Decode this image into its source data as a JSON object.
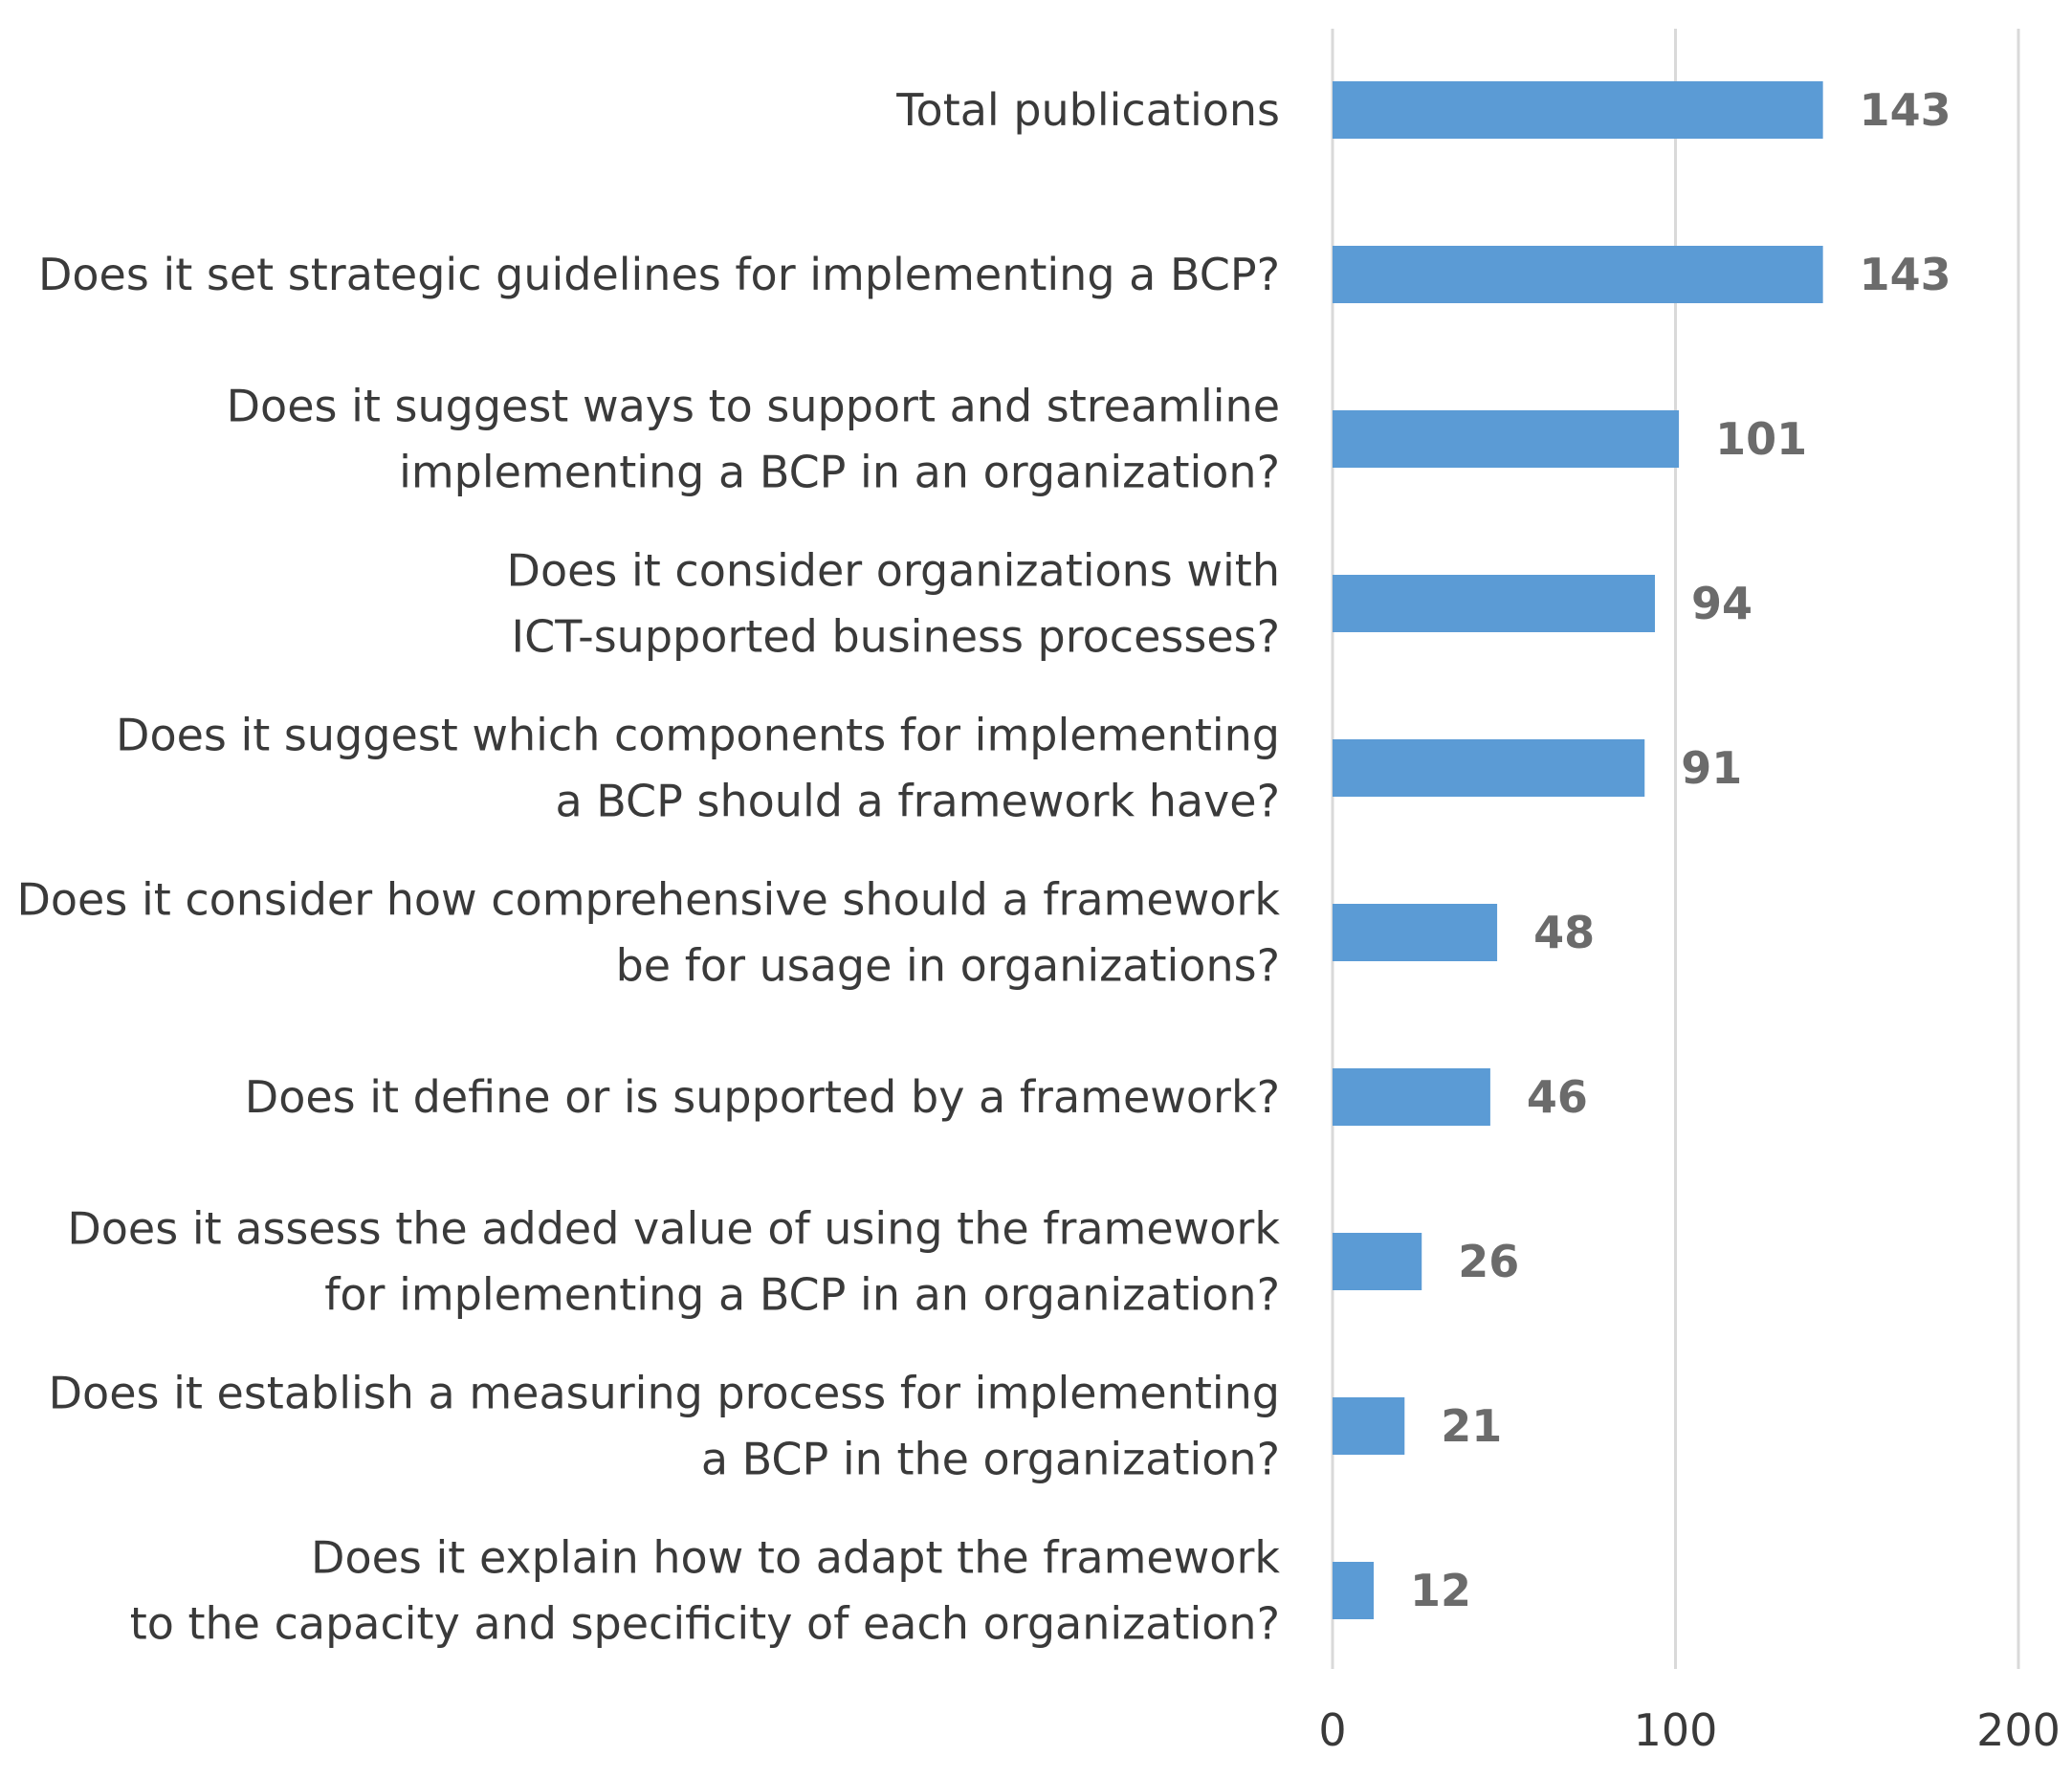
{
  "chart_data": {
    "type": "bar",
    "orientation": "horizontal",
    "title": "",
    "xlabel": "",
    "ylabel": "",
    "xlim": [
      0,
      200
    ],
    "ticks": [
      0,
      100,
      200
    ],
    "tick_labels": [
      "0",
      "100",
      "200"
    ],
    "grid": true,
    "bar_color": "#5b9bd5",
    "categories": [
      [
        "Total publications"
      ],
      [
        "Does it set strategic guidelines for implementing a BCP?"
      ],
      [
        "Does it suggest ways to support and streamline",
        "implementing a BCP in an organization?"
      ],
      [
        "Does it consider organizations with",
        "ICT-supported business processes?"
      ],
      [
        "Does it suggest which components for implementing",
        "a BCP should a framework have?"
      ],
      [
        "Does it consider how comprehensive should a framework",
        "be for usage in organizations?"
      ],
      [
        "Does it define or is supported by a framework?"
      ],
      [
        "Does it assess the added value of using the framework",
        "for implementing a BCP in an organization?"
      ],
      [
        "Does it establish a measuring process for implementing",
        "a BCP in the organization?"
      ],
      [
        "Does it explain how to adapt the framework",
        "to the capacity and specificity of each organization?"
      ]
    ],
    "values": [
      143,
      143,
      101,
      94,
      91,
      48,
      46,
      26,
      21,
      12
    ],
    "value_labels": [
      "143",
      "143",
      "101",
      "94",
      "91",
      "48",
      "46",
      "26",
      "21",
      "12"
    ]
  }
}
